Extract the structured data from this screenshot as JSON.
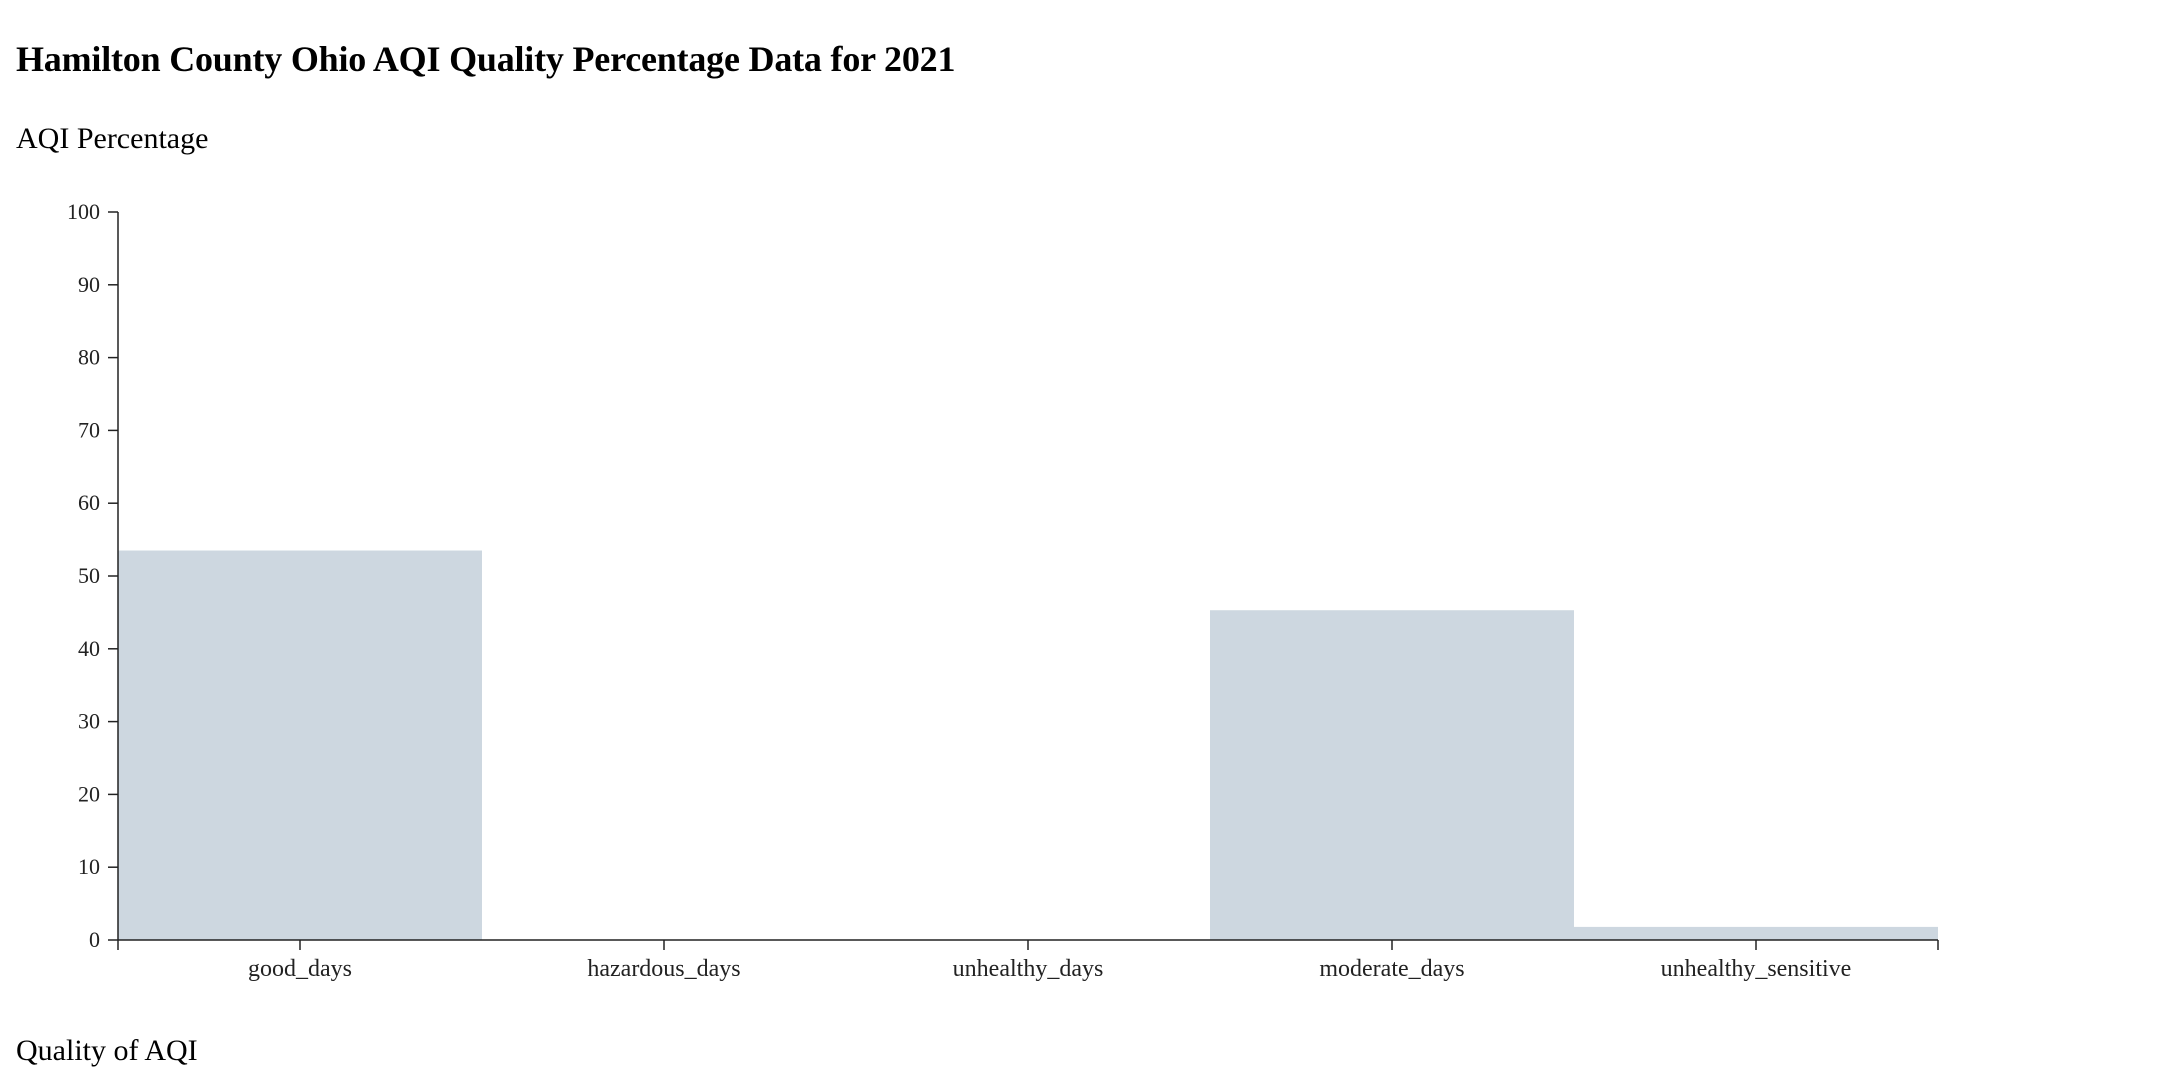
{
  "header": {
    "title": "Hamilton County Ohio AQI Quality Percentage Data for 2021"
  },
  "chart_data": {
    "type": "bar",
    "title": "Hamilton County Ohio AQI Quality Percentage Data for 2021",
    "xlabel": "Quality of AQI",
    "ylabel": "AQI Percentage",
    "categories": [
      "good_days",
      "hazardous_days",
      "unhealthy_days",
      "moderate_days",
      "unhealthy_sensitive"
    ],
    "values": [
      53.5,
      0,
      0,
      45.3,
      1.8
    ],
    "ylim": [
      0,
      100
    ],
    "yticks": [
      0,
      10,
      20,
      30,
      40,
      50,
      60,
      70,
      80,
      90,
      100
    ],
    "grid": false,
    "legend": "none",
    "bar_color": "#cdd7e0",
    "axis_color": "#222222"
  }
}
